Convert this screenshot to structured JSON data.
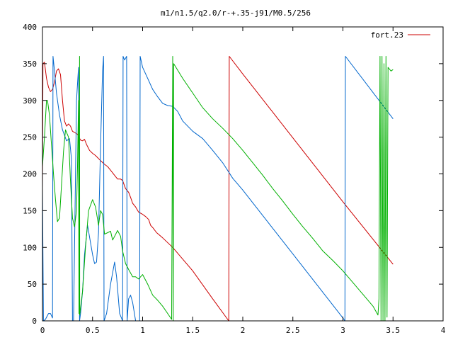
{
  "chart_data": {
    "type": "line",
    "title": "m1/n1.5/q2.0/r-+.35-j91/M0.5/256",
    "xlabel": "",
    "ylabel": "",
    "xlim": [
      0,
      4
    ],
    "ylim": [
      0,
      400
    ],
    "x_ticks": [
      0,
      0.5,
      1,
      1.5,
      2,
      2.5,
      3,
      3.5,
      4
    ],
    "x_tick_labels": [
      "0",
      "0.5",
      "1",
      "1.5",
      "2",
      "2.5",
      "3",
      "3.5",
      "4"
    ],
    "y_ticks": [
      0,
      50,
      100,
      150,
      200,
      250,
      300,
      350,
      400
    ],
    "y_tick_labels": [
      "0",
      "50",
      "100",
      "150",
      "200",
      "250",
      "300",
      "350",
      "400"
    ],
    "grid": false,
    "legend_position": "top-right",
    "series": [
      {
        "name": "fort.23",
        "color": "#cc0000",
        "width": 1,
        "points": [
          [
            0,
            180
          ],
          [
            0.005,
            350
          ],
          [
            0.02,
            352
          ],
          [
            0.04,
            330
          ],
          [
            0.06,
            318
          ],
          [
            0.08,
            312
          ],
          [
            0.1,
            315
          ],
          [
            0.12,
            325
          ],
          [
            0.14,
            340
          ],
          [
            0.16,
            343
          ],
          [
            0.18,
            335
          ],
          [
            0.2,
            300
          ],
          [
            0.22,
            272
          ],
          [
            0.24,
            265
          ],
          [
            0.26,
            268
          ],
          [
            0.28,
            265
          ],
          [
            0.3,
            258
          ],
          [
            0.35,
            254
          ],
          [
            0.38,
            246
          ],
          [
            0.4,
            245
          ],
          [
            0.42,
            247
          ],
          [
            0.44,
            240
          ],
          [
            0.47,
            232
          ],
          [
            0.5,
            228
          ],
          [
            0.53,
            225
          ],
          [
            0.58,
            218
          ],
          [
            0.62,
            213
          ],
          [
            0.65,
            210
          ],
          [
            0.68,
            205
          ],
          [
            0.72,
            198
          ],
          [
            0.75,
            193
          ],
          [
            0.78,
            193
          ],
          [
            0.8,
            191
          ],
          [
            0.83,
            180
          ],
          [
            0.86,
            175
          ],
          [
            0.88,
            168
          ],
          [
            0.9,
            160
          ],
          [
            0.93,
            155
          ],
          [
            0.96,
            148
          ],
          [
            1,
            145
          ],
          [
            1.03,
            142
          ],
          [
            1.06,
            138
          ],
          [
            1.08,
            130
          ],
          [
            1.1,
            127
          ],
          [
            1.14,
            120
          ],
          [
            1.2,
            113
          ],
          [
            1.3,
            100
          ],
          [
            1.5,
            68
          ],
          [
            1.7,
            30
          ],
          [
            1.86,
            0
          ],
          [
            1.865,
            360
          ],
          [
            2.0,
            336
          ],
          [
            2.5,
            249
          ],
          [
            3.0,
            162
          ],
          [
            3.5,
            77
          ]
        ]
      },
      {
        "name": "",
        "color": "#0066cc",
        "width": 1,
        "points": [
          [
            0,
            180
          ],
          [
            0.01,
            0
          ],
          [
            0.03,
            2
          ],
          [
            0.06,
            10
          ],
          [
            0.08,
            10
          ],
          [
            0.1,
            4
          ],
          [
            0.105,
            360
          ],
          [
            0.12,
            340
          ],
          [
            0.14,
            310
          ],
          [
            0.17,
            280
          ],
          [
            0.2,
            260
          ],
          [
            0.24,
            245
          ],
          [
            0.27,
            248
          ],
          [
            0.29,
            220
          ],
          [
            0.3,
            0
          ],
          [
            0.31,
            0
          ],
          [
            0.34,
            300
          ],
          [
            0.36,
            345
          ],
          [
            0.37,
            0
          ],
          [
            0.38,
            10
          ],
          [
            0.4,
            40
          ],
          [
            0.42,
            90
          ],
          [
            0.45,
            130
          ],
          [
            0.5,
            90
          ],
          [
            0.52,
            78
          ],
          [
            0.54,
            80
          ],
          [
            0.56,
            120
          ],
          [
            0.58,
            240
          ],
          [
            0.6,
            340
          ],
          [
            0.61,
            360
          ],
          [
            0.615,
            0
          ],
          [
            0.64,
            10
          ],
          [
            0.68,
            50
          ],
          [
            0.72,
            80
          ],
          [
            0.74,
            60
          ],
          [
            0.77,
            10
          ],
          [
            0.8,
            0
          ],
          [
            0.805,
            360
          ],
          [
            0.82,
            355
          ],
          [
            0.84,
            360
          ],
          [
            0.845,
            0
          ],
          [
            0.86,
            30
          ],
          [
            0.88,
            35
          ],
          [
            0.9,
            25
          ],
          [
            0.93,
            0
          ],
          [
            0.97,
            0
          ],
          [
            0.975,
            360
          ],
          [
            1.0,
            345
          ],
          [
            1.05,
            330
          ],
          [
            1.1,
            315
          ],
          [
            1.15,
            305
          ],
          [
            1.2,
            296
          ],
          [
            1.25,
            293
          ],
          [
            1.3,
            292
          ],
          [
            1.35,
            285
          ],
          [
            1.4,
            272
          ],
          [
            1.5,
            258
          ],
          [
            1.6,
            248
          ],
          [
            1.7,
            232
          ],
          [
            1.8,
            215
          ],
          [
            1.9,
            194
          ],
          [
            2.0,
            178
          ],
          [
            2.5,
            91
          ],
          [
            3.0,
            4
          ],
          [
            3.02,
            0
          ],
          [
            3.025,
            360
          ],
          [
            3.5,
            275
          ]
        ]
      },
      {
        "name": "",
        "color": "#00b000",
        "width": 1,
        "points": [
          [
            0,
            210
          ],
          [
            0.02,
            250
          ],
          [
            0.04,
            300
          ],
          [
            0.05,
            300
          ],
          [
            0.07,
            280
          ],
          [
            0.09,
            240
          ],
          [
            0.11,
            200
          ],
          [
            0.13,
            165
          ],
          [
            0.15,
            135
          ],
          [
            0.17,
            140
          ],
          [
            0.19,
            185
          ],
          [
            0.21,
            230
          ],
          [
            0.23,
            260
          ],
          [
            0.26,
            250
          ],
          [
            0.28,
            190
          ],
          [
            0.3,
            140
          ],
          [
            0.32,
            128
          ],
          [
            0.34,
            150
          ],
          [
            0.35,
            210
          ],
          [
            0.36,
            300
          ],
          [
            0.365,
            10
          ],
          [
            0.37,
            360
          ],
          [
            0.372,
            8
          ],
          [
            0.4,
            40
          ],
          [
            0.43,
            100
          ],
          [
            0.46,
            150
          ],
          [
            0.5,
            165
          ],
          [
            0.53,
            155
          ],
          [
            0.56,
            130
          ],
          [
            0.58,
            150
          ],
          [
            0.6,
            145
          ],
          [
            0.62,
            118
          ],
          [
            0.65,
            120
          ],
          [
            0.68,
            122
          ],
          [
            0.7,
            110
          ],
          [
            0.72,
            115
          ],
          [
            0.75,
            123
          ],
          [
            0.78,
            115
          ],
          [
            0.8,
            95
          ],
          [
            0.83,
            78
          ],
          [
            0.86,
            70
          ],
          [
            0.9,
            60
          ],
          [
            0.93,
            60
          ],
          [
            0.96,
            57
          ],
          [
            1.0,
            63
          ],
          [
            1.05,
            50
          ],
          [
            1.1,
            35
          ],
          [
            1.15,
            28
          ],
          [
            1.2,
            20
          ],
          [
            1.25,
            10
          ],
          [
            1.29,
            2
          ],
          [
            1.3,
            360
          ],
          [
            1.305,
            0
          ],
          [
            1.31,
            350
          ],
          [
            1.4,
            330
          ],
          [
            1.5,
            310
          ],
          [
            1.6,
            290
          ],
          [
            1.7,
            275
          ],
          [
            1.8,
            262
          ],
          [
            1.9,
            248
          ],
          [
            2.0,
            232
          ],
          [
            2.1,
            215
          ],
          [
            2.2,
            198
          ],
          [
            2.3,
            180
          ],
          [
            2.4,
            163
          ],
          [
            2.5,
            145
          ],
          [
            2.6,
            128
          ],
          [
            2.7,
            112
          ],
          [
            2.8,
            95
          ],
          [
            2.9,
            82
          ],
          [
            3.0,
            68
          ],
          [
            3.1,
            52
          ],
          [
            3.2,
            36
          ],
          [
            3.3,
            20
          ],
          [
            3.35,
            8
          ],
          [
            3.36,
            30
          ],
          [
            3.37,
            360
          ],
          [
            3.38,
            0
          ],
          [
            3.39,
            360
          ],
          [
            3.4,
            0
          ],
          [
            3.41,
            350
          ],
          [
            3.42,
            0
          ],
          [
            3.43,
            360
          ],
          [
            3.44,
            5
          ],
          [
            3.45,
            345
          ],
          [
            3.48,
            340
          ],
          [
            3.5,
            342
          ]
        ]
      }
    ]
  }
}
